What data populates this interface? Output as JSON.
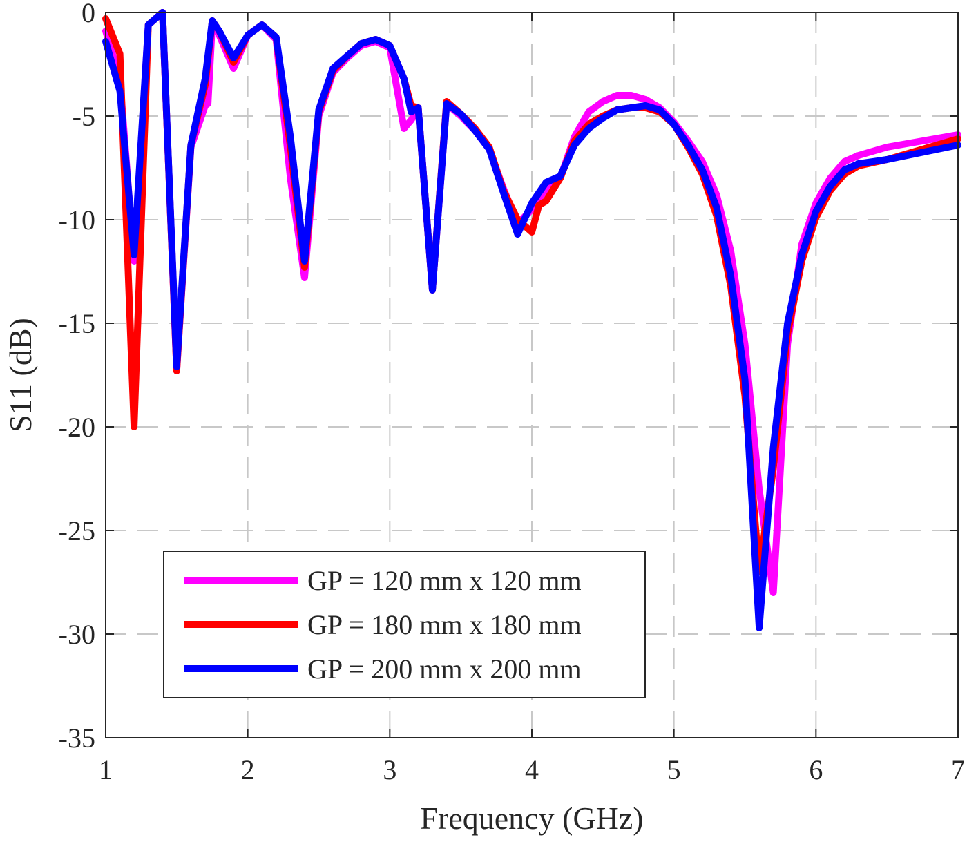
{
  "chart_data": {
    "type": "line",
    "title": "",
    "xlabel": "Frequency (GHz)",
    "ylabel": "S11 (dB)",
    "xlim": [
      1,
      7
    ],
    "ylim": [
      -35,
      0
    ],
    "xticks": [
      1,
      2,
      3,
      4,
      5,
      6,
      7
    ],
    "yticks": [
      0,
      -5,
      -10,
      -15,
      -20,
      -25,
      -30,
      -35
    ],
    "xtick_labels": [
      "1",
      "2",
      "3",
      "4",
      "5",
      "6",
      "7"
    ],
    "ytick_labels": [
      "0",
      "-5",
      "-10",
      "-15",
      "-20",
      "-25",
      "-30",
      "-35"
    ],
    "grid": true,
    "legend_position": "bottom-left",
    "series": [
      {
        "name": "GP = 120 mm x 120 mm",
        "color": "#ff00ff",
        "x": [
          1.0,
          1.1,
          1.2,
          1.3,
          1.4,
          1.5,
          1.6,
          1.7,
          1.72,
          1.75,
          1.8,
          1.9,
          2.0,
          2.1,
          2.2,
          2.3,
          2.4,
          2.5,
          2.6,
          2.7,
          2.8,
          2.9,
          3.0,
          3.1,
          3.15,
          3.2,
          3.3,
          3.4,
          3.5,
          3.6,
          3.7,
          3.8,
          3.9,
          4.0,
          4.1,
          4.2,
          4.3,
          4.4,
          4.5,
          4.6,
          4.7,
          4.8,
          4.9,
          5.0,
          5.1,
          5.2,
          5.3,
          5.4,
          5.5,
          5.6,
          5.7,
          5.8,
          5.9,
          6.0,
          6.1,
          6.2,
          6.3,
          6.5,
          7.0
        ],
        "y": [
          -0.9,
          -3.2,
          -12,
          -0.6,
          0,
          -17.3,
          -6.5,
          -4.5,
          -4.4,
          -0.5,
          -1.1,
          -2.7,
          -1.1,
          -0.6,
          -1.3,
          -8,
          -12.8,
          -5,
          -2.9,
          -2.2,
          -1.6,
          -1.4,
          -1.7,
          -5.6,
          -5.2,
          -4.6,
          -13.4,
          -4.4,
          -5,
          -5.7,
          -6.6,
          -8.5,
          -10.2,
          -9.5,
          -8.5,
          -8,
          -6,
          -4.8,
          -4.3,
          -4.0,
          -4.0,
          -4.2,
          -4.6,
          -5.3,
          -6.2,
          -7.2,
          -8.8,
          -11.5,
          -16,
          -23,
          -28,
          -16,
          -11.2,
          -9.2,
          -8,
          -7.2,
          -6.9,
          -6.5,
          -5.9
        ]
      },
      {
        "name": "GP = 180 mm x 180 mm",
        "color": "#ff0000",
        "x": [
          1.0,
          1.1,
          1.2,
          1.3,
          1.4,
          1.5,
          1.6,
          1.7,
          1.75,
          1.8,
          1.9,
          2.0,
          2.1,
          2.2,
          2.3,
          2.4,
          2.5,
          2.6,
          2.7,
          2.8,
          2.9,
          3.0,
          3.1,
          3.15,
          3.2,
          3.3,
          3.4,
          3.5,
          3.6,
          3.7,
          3.8,
          3.9,
          4.0,
          4.05,
          4.1,
          4.2,
          4.3,
          4.4,
          4.5,
          4.6,
          4.7,
          4.8,
          4.9,
          5.0,
          5.1,
          5.2,
          5.3,
          5.4,
          5.5,
          5.6,
          5.7,
          5.8,
          5.9,
          6.0,
          6.1,
          6.2,
          6.3,
          6.5,
          7.0
        ],
        "y": [
          -0.3,
          -2,
          -20,
          -0.6,
          0,
          -17.3,
          -6.4,
          -3.5,
          -0.4,
          -0.9,
          -2.4,
          -1.1,
          -0.6,
          -1.2,
          -6.5,
          -12.3,
          -4.8,
          -2.8,
          -2.1,
          -1.5,
          -1.3,
          -1.6,
          -3.2,
          -4.5,
          -4.6,
          -13.4,
          -4.3,
          -4.9,
          -5.6,
          -6.5,
          -8.6,
          -10,
          -10.6,
          -9.3,
          -9.1,
          -8,
          -6.2,
          -5.4,
          -5,
          -4.7,
          -4.6,
          -4.6,
          -4.8,
          -5.4,
          -6.5,
          -7.8,
          -9.8,
          -13.2,
          -18.5,
          -27,
          -22,
          -15.5,
          -12,
          -9.9,
          -8.6,
          -7.8,
          -7.4,
          -7.1,
          -6.1
        ]
      },
      {
        "name": "GP = 200 mm x 200 mm",
        "color": "#0000ff",
        "x": [
          1.0,
          1.1,
          1.2,
          1.3,
          1.4,
          1.5,
          1.6,
          1.7,
          1.75,
          1.8,
          1.9,
          2.0,
          2.1,
          2.2,
          2.3,
          2.4,
          2.5,
          2.6,
          2.7,
          2.8,
          2.9,
          3.0,
          3.1,
          3.15,
          3.2,
          3.3,
          3.4,
          3.5,
          3.6,
          3.7,
          3.8,
          3.9,
          4.0,
          4.1,
          4.2,
          4.3,
          4.4,
          4.5,
          4.6,
          4.7,
          4.8,
          4.9,
          5.0,
          5.1,
          5.2,
          5.3,
          5.4,
          5.5,
          5.6,
          5.7,
          5.8,
          5.9,
          6.0,
          6.1,
          6.2,
          6.3,
          6.5,
          7.0
        ],
        "y": [
          -1.4,
          -3.8,
          -11.7,
          -0.6,
          0,
          -17.1,
          -6.4,
          -3.2,
          -0.4,
          -0.9,
          -2.2,
          -1.1,
          -0.6,
          -1.2,
          -6,
          -12,
          -4.7,
          -2.7,
          -2.1,
          -1.5,
          -1.3,
          -1.6,
          -3.2,
          -4.8,
          -4.6,
          -13.4,
          -4.4,
          -4.9,
          -5.7,
          -6.6,
          -8.7,
          -10.7,
          -9.2,
          -8.2,
          -7.9,
          -6.4,
          -5.6,
          -5.1,
          -4.7,
          -4.6,
          -4.5,
          -4.7,
          -5.4,
          -6.4,
          -7.6,
          -9.4,
          -12.7,
          -17.7,
          -29.7,
          -21,
          -15,
          -11.7,
          -9.6,
          -8.4,
          -7.6,
          -7.3,
          -7.1,
          -6.4
        ]
      }
    ]
  }
}
